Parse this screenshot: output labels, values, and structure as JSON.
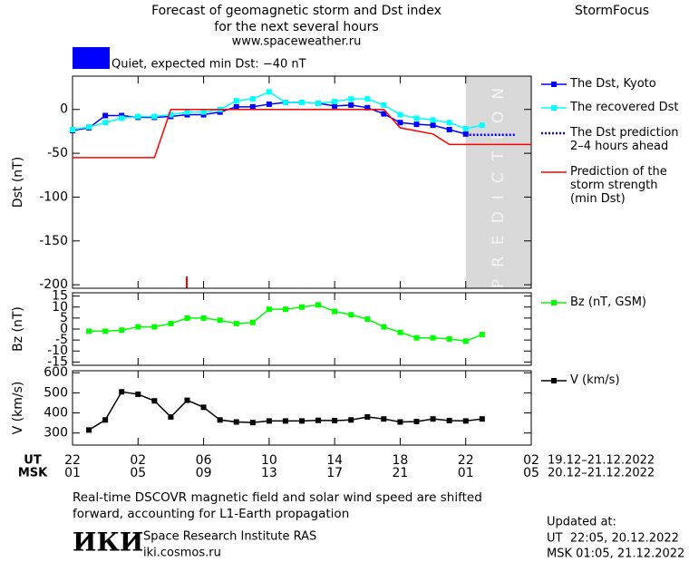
{
  "header": {
    "title_lines": [
      "Forecast of geomagnetic storm and Dst index",
      "for the next several hours",
      "www.spaceweather.ru"
    ],
    "brand": "StormFocus"
  },
  "status": {
    "text": "Quiet, expected min Dst: −40 nT",
    "color": "#0000ff"
  },
  "time_axis": {
    "ut_caption": "UT",
    "msk_caption": "MSK",
    "ut_range": "19.12–21.12.2022",
    "msk_range": "20.12–21.12.2022"
  },
  "chart_data": [
    {
      "type": "line",
      "y_label": "Dst (nT)",
      "xlim": [
        0,
        28
      ],
      "xticks": [
        {
          "value": 0,
          "label": "22"
        },
        {
          "value": 4,
          "label": "02"
        },
        {
          "value": 8,
          "label": "06"
        },
        {
          "value": 12,
          "label": "10"
        },
        {
          "value": 16,
          "label": "14"
        },
        {
          "value": 20,
          "label": "18"
        },
        {
          "value": 24,
          "label": "22"
        },
        {
          "value": 28,
          "label": "02"
        }
      ],
      "msk_xtick_labels": [
        "01",
        "05",
        "09",
        "13",
        "17",
        "21",
        "01",
        "05"
      ],
      "ylim": [
        -204,
        38
      ],
      "yticks": [
        0,
        -50,
        -100,
        -150,
        -200
      ],
      "prediction_region": {
        "x": [
          24,
          28
        ],
        "label": "PREDICTION",
        "color": "#d9d9d9"
      },
      "series": [
        {
          "name": "The Dst, Kyoto",
          "color": "#0000ff",
          "marker": "square",
          "x": [
            0,
            1,
            2,
            3,
            4,
            5,
            6,
            7,
            8,
            9,
            10,
            11,
            12,
            13,
            14,
            15,
            16,
            17,
            18,
            19,
            20,
            21,
            22,
            23,
            24
          ],
          "values": [
            -24,
            -21,
            -7,
            -7,
            -9,
            -9,
            -8,
            -6,
            -6,
            -3,
            3,
            3,
            6,
            8,
            8,
            7,
            4,
            5,
            2,
            -5,
            -15,
            -17,
            -18,
            -23,
            -28
          ]
        },
        {
          "name": "The recovered Dst",
          "color": "#00ffff",
          "marker": "square",
          "x": [
            0,
            1,
            2,
            3,
            4,
            5,
            6,
            7,
            8,
            9,
            10,
            11,
            12,
            13,
            14,
            15,
            16,
            17,
            18,
            19,
            20,
            21,
            22,
            23,
            24,
            25
          ],
          "values": [
            -23,
            -20,
            -15,
            -10,
            -8,
            -8,
            -6,
            -3,
            -3,
            0,
            10,
            12,
            20,
            8,
            8,
            7,
            9,
            12,
            12,
            5,
            -6,
            -10,
            -12,
            -15,
            -22,
            -18
          ]
        },
        {
          "name": "The Dst prediction\n2–4 hours ahead",
          "color": "#0000ff",
          "dash": "2,2",
          "x": [
            24,
            27
          ],
          "values": [
            -29,
            -29
          ]
        },
        {
          "name": "Prediction of the\nstorm strength\n(min Dst)",
          "color": "#ff0000",
          "x": [
            0,
            5,
            6,
            19,
            20,
            22,
            23,
            28
          ],
          "values": [
            -55,
            -55,
            0,
            0,
            -21,
            -28,
            -40,
            -40
          ]
        }
      ]
    },
    {
      "type": "line",
      "y_label": "Bz (nT)",
      "xlim": [
        0,
        28
      ],
      "ylim": [
        -16.5,
        16.5
      ],
      "yticks": [
        15,
        10,
        5,
        0,
        -5,
        -10,
        -15
      ],
      "series": [
        {
          "name": "Bz (nT, GSM)",
          "color": "#00ff00",
          "marker": "square",
          "x": [
            1,
            2,
            3,
            4,
            5,
            6,
            7,
            8,
            9,
            10,
            11,
            12,
            13,
            14,
            15,
            16,
            17,
            18,
            19,
            20,
            21,
            22,
            23,
            24,
            25
          ],
          "values": [
            -1,
            -1,
            -0.5,
            1,
            1,
            2.5,
            5,
            5,
            4,
            2.5,
            3,
            9,
            9,
            10,
            11,
            8,
            6.5,
            4.5,
            1,
            -1.5,
            -4,
            -4,
            -4.5,
            -5.5,
            -2.5
          ]
        }
      ]
    },
    {
      "type": "line",
      "y_label": "V (km/s)",
      "xlim": [
        0,
        28
      ],
      "ylim": [
        240,
        610
      ],
      "yticks": [
        300,
        400,
        500,
        600
      ],
      "series": [
        {
          "name": "V (km/s)",
          "color": "#000000",
          "marker": "square",
          "x": [
            1,
            2,
            3,
            4,
            5,
            6,
            7,
            8,
            9,
            10,
            11,
            12,
            13,
            14,
            15,
            16,
            17,
            18,
            19,
            20,
            21,
            22,
            23,
            24,
            25
          ],
          "values": [
            315,
            365,
            505,
            493,
            460,
            380,
            463,
            428,
            365,
            355,
            352,
            360,
            360,
            360,
            363,
            362,
            365,
            380,
            370,
            355,
            357,
            370,
            362,
            360,
            370
          ]
        }
      ]
    }
  ],
  "footer": {
    "note": "Real-time DSCOVR magnetic field and solar wind speed are shifted\nforward, accounting for L1-Earth propagation",
    "logo": "ИКИ",
    "institute": "Space Research Institute RAS",
    "url": "iki.cosmos.ru",
    "updated_caption": "Updated at:",
    "updated_ut": "UT  22:05, 20.12.2022",
    "updated_msk": "MSK 01:05, 21.12.2022"
  }
}
